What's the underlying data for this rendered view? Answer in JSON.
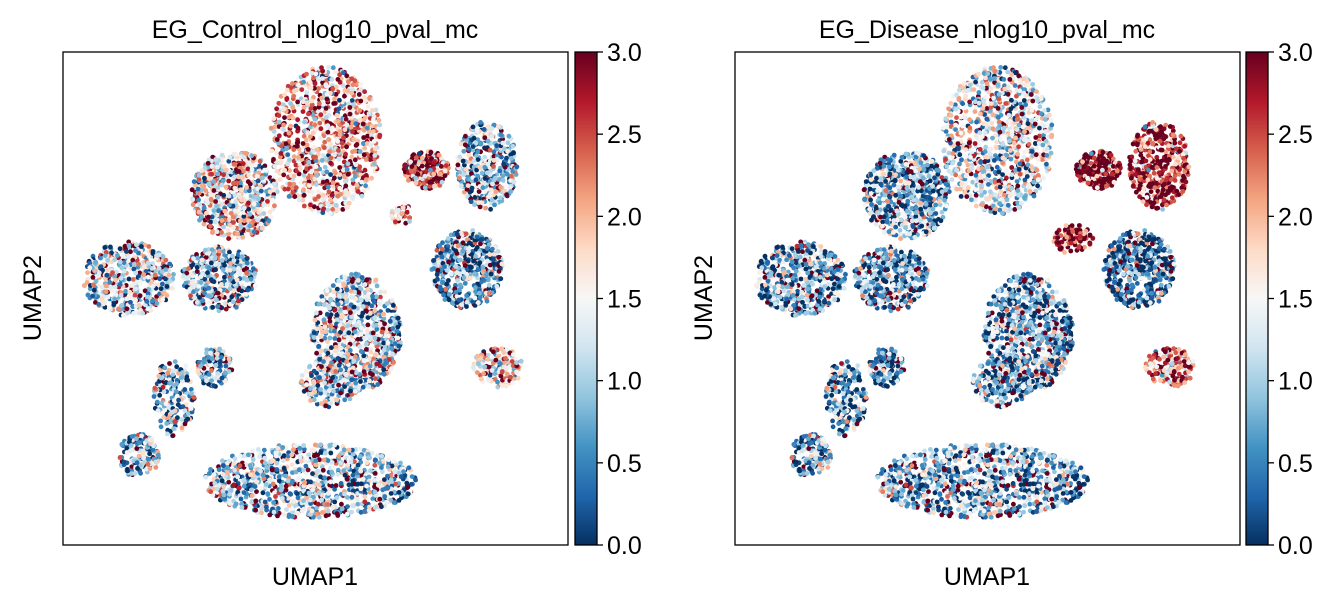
{
  "chart_data": [
    {
      "type": "scatter",
      "title": "EG_Control_nlog10_pval_mc",
      "xlabel": "UMAP1",
      "ylabel": "UMAP2",
      "colormap": "RdBu_r",
      "colorbar": {
        "vmin": 0.0,
        "vmax": 3.0,
        "ticks": [
          "0.0",
          "0.5",
          "1.0",
          "1.5",
          "2.0",
          "2.5",
          "3.0"
        ]
      },
      "clusters": [
        {
          "cx": 0.52,
          "cy": 0.82,
          "rx": 0.11,
          "ry": 0.15,
          "mean": 1.9,
          "n": 950
        },
        {
          "cx": 0.34,
          "cy": 0.71,
          "rx": 0.085,
          "ry": 0.09,
          "mean": 1.55,
          "n": 650
        },
        {
          "cx": 0.72,
          "cy": 0.76,
          "rx": 0.045,
          "ry": 0.04,
          "mean": 2.4,
          "n": 220
        },
        {
          "cx": 0.84,
          "cy": 0.77,
          "rx": 0.06,
          "ry": 0.09,
          "mean": 0.95,
          "n": 420
        },
        {
          "cx": 0.13,
          "cy": 0.54,
          "rx": 0.09,
          "ry": 0.075,
          "mean": 1.2,
          "n": 520
        },
        {
          "cx": 0.31,
          "cy": 0.54,
          "rx": 0.075,
          "ry": 0.065,
          "mean": 0.95,
          "n": 430
        },
        {
          "cx": 0.58,
          "cy": 0.43,
          "rx": 0.09,
          "ry": 0.12,
          "mean": 1.15,
          "n": 800
        },
        {
          "cx": 0.8,
          "cy": 0.56,
          "rx": 0.07,
          "ry": 0.08,
          "mean": 0.7,
          "n": 520
        },
        {
          "cx": 0.86,
          "cy": 0.36,
          "rx": 0.05,
          "ry": 0.04,
          "mean": 1.5,
          "n": 160
        },
        {
          "cx": 0.3,
          "cy": 0.36,
          "rx": 0.035,
          "ry": 0.04,
          "mean": 0.95,
          "n": 130
        },
        {
          "cx": 0.22,
          "cy": 0.3,
          "rx": 0.04,
          "ry": 0.08,
          "mean": 0.9,
          "n": 200
        },
        {
          "cx": 0.15,
          "cy": 0.18,
          "rx": 0.04,
          "ry": 0.045,
          "mean": 0.85,
          "n": 170
        },
        {
          "cx": 0.49,
          "cy": 0.13,
          "rx": 0.21,
          "ry": 0.075,
          "mean": 1.0,
          "n": 1000
        },
        {
          "cx": 0.67,
          "cy": 0.67,
          "rx": 0.02,
          "ry": 0.025,
          "mean": 2.3,
          "n": 40
        },
        {
          "cx": 0.53,
          "cy": 0.33,
          "rx": 0.06,
          "ry": 0.05,
          "mean": 1.1,
          "n": 200
        }
      ]
    },
    {
      "type": "scatter",
      "title": "EG_Disease_nlog10_pval_mc",
      "xlabel": "UMAP1",
      "ylabel": "UMAP2",
      "colormap": "RdBu_r",
      "colorbar": {
        "vmin": 0.0,
        "vmax": 3.0,
        "ticks": [
          "0.0",
          "0.5",
          "1.0",
          "1.5",
          "2.0",
          "2.5",
          "3.0"
        ]
      },
      "clusters": [
        {
          "cx": 0.52,
          "cy": 0.82,
          "rx": 0.11,
          "ry": 0.15,
          "mean": 1.3,
          "n": 950
        },
        {
          "cx": 0.34,
          "cy": 0.71,
          "rx": 0.085,
          "ry": 0.09,
          "mean": 0.8,
          "n": 650
        },
        {
          "cx": 0.72,
          "cy": 0.76,
          "rx": 0.045,
          "ry": 0.04,
          "mean": 2.95,
          "n": 220
        },
        {
          "cx": 0.84,
          "cy": 0.77,
          "rx": 0.06,
          "ry": 0.09,
          "mean": 2.6,
          "n": 420
        },
        {
          "cx": 0.13,
          "cy": 0.54,
          "rx": 0.09,
          "ry": 0.075,
          "mean": 0.75,
          "n": 520
        },
        {
          "cx": 0.31,
          "cy": 0.54,
          "rx": 0.075,
          "ry": 0.065,
          "mean": 0.7,
          "n": 430
        },
        {
          "cx": 0.58,
          "cy": 0.43,
          "rx": 0.09,
          "ry": 0.12,
          "mean": 0.75,
          "n": 800
        },
        {
          "cx": 0.8,
          "cy": 0.56,
          "rx": 0.07,
          "ry": 0.08,
          "mean": 0.45,
          "n": 520
        },
        {
          "cx": 0.86,
          "cy": 0.36,
          "rx": 0.05,
          "ry": 0.04,
          "mean": 2.0,
          "n": 160
        },
        {
          "cx": 0.3,
          "cy": 0.36,
          "rx": 0.035,
          "ry": 0.04,
          "mean": 0.6,
          "n": 130
        },
        {
          "cx": 0.22,
          "cy": 0.3,
          "rx": 0.04,
          "ry": 0.08,
          "mean": 0.6,
          "n": 200
        },
        {
          "cx": 0.15,
          "cy": 0.18,
          "rx": 0.04,
          "ry": 0.045,
          "mean": 0.7,
          "n": 170
        },
        {
          "cx": 0.49,
          "cy": 0.13,
          "rx": 0.21,
          "ry": 0.075,
          "mean": 0.8,
          "n": 1000
        },
        {
          "cx": 0.67,
          "cy": 0.62,
          "rx": 0.04,
          "ry": 0.03,
          "mean": 2.9,
          "n": 90
        },
        {
          "cx": 0.53,
          "cy": 0.33,
          "rx": 0.06,
          "ry": 0.05,
          "mean": 0.7,
          "n": 200
        }
      ]
    }
  ]
}
